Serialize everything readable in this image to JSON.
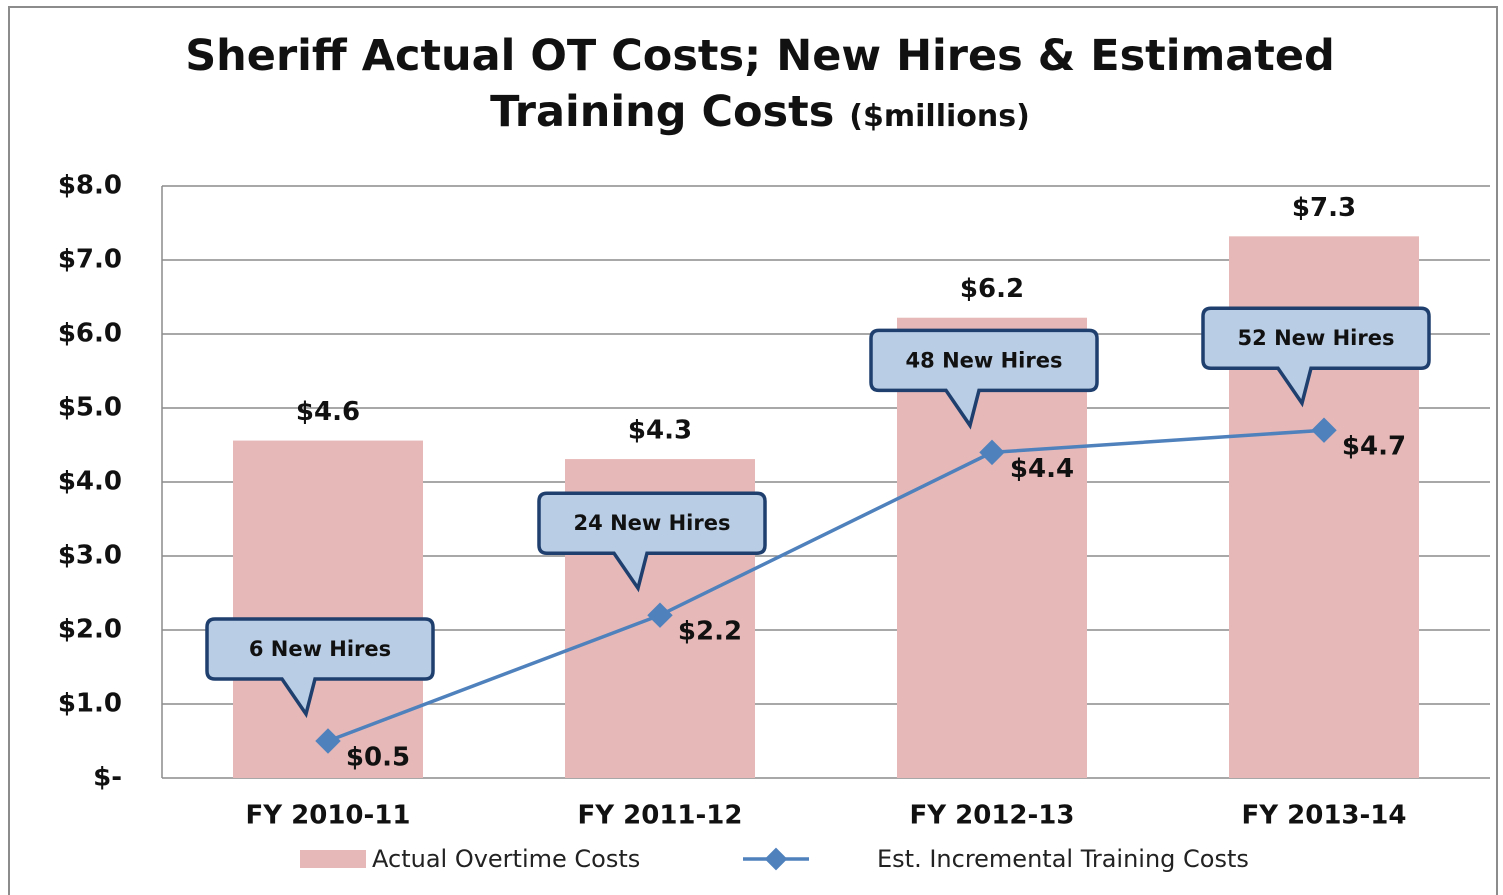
{
  "chart_data": {
    "type": "bar-line",
    "title": "Sheriff Actual OT Costs; New Hires & Estimated Training Costs",
    "subtitle": "($millions)",
    "categories": [
      "FY 2010-11",
      "FY 2011-12",
      "FY 2012-13",
      "FY 2013-14"
    ],
    "series": [
      {
        "name": "Actual Overtime Costs",
        "type": "bar",
        "color": "#e6b9b8",
        "values": [
          4.56,
          4.31,
          6.22,
          7.32
        ],
        "value_labels": [
          "$4.6",
          "$4.3",
          "$6.2",
          "$7.3"
        ]
      },
      {
        "name": "Est. Incremental Training Costs",
        "type": "line",
        "color": "#4f81bd",
        "values": [
          0.5,
          2.2,
          4.4,
          4.7
        ],
        "value_labels": [
          "$0.5",
          "$2.2",
          "$4.4",
          "$4.7"
        ]
      }
    ],
    "annotations": [
      "6 New Hires",
      "24 New Hires",
      "48 New Hires",
      "52 New Hires"
    ],
    "ylim": [
      0,
      8
    ],
    "yticks": [
      {
        "value": 0,
        "label": "$-"
      },
      {
        "value": 1,
        "label": "$1.0"
      },
      {
        "value": 2,
        "label": "$2.0"
      },
      {
        "value": 3,
        "label": "$3.0"
      },
      {
        "value": 4,
        "label": "$4.0"
      },
      {
        "value": 5,
        "label": "$5.0"
      },
      {
        "value": 6,
        "label": "$6.0"
      },
      {
        "value": 7,
        "label": "$7.0"
      },
      {
        "value": 8,
        "label": "$8.0"
      }
    ],
    "grid": true,
    "legend": "bottom"
  }
}
